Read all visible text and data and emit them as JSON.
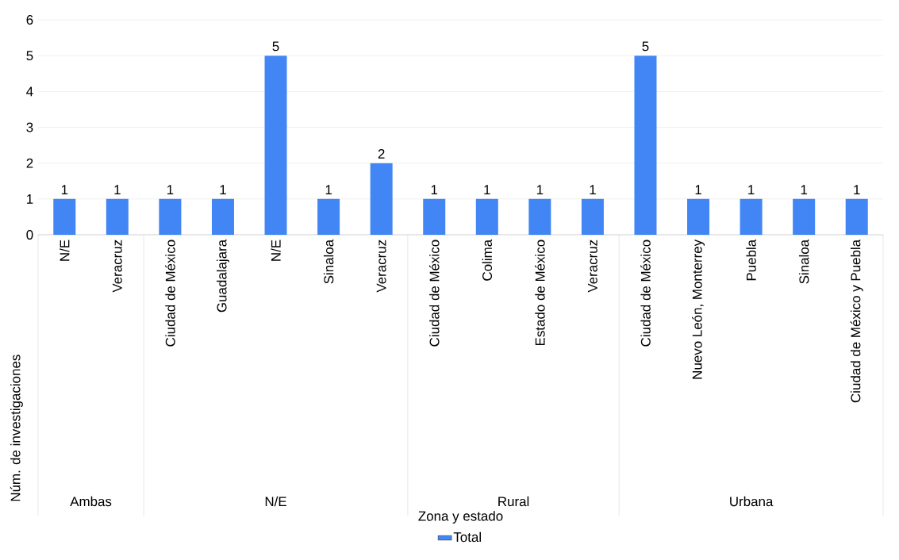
{
  "chart_data": {
    "type": "bar",
    "ylabel": "Núm. de investigaciones",
    "categories": [
      "N/E",
      "Veracruz",
      "Ciudad de México",
      "Guadalajara",
      "N/E",
      "Sinaloa",
      "Veracruz",
      "Ciudad de México",
      "Colima",
      "Estado de México",
      "Veracruz",
      "Ciudad de México",
      "Nuevo León, Monterrey",
      "Puebla",
      "Sinaloa",
      "Ciudad de México y Puebla"
    ],
    "series": [
      {
        "name": "Total",
        "color": "#4285f4",
        "values": [
          1,
          1,
          1,
          1,
          5,
          1,
          2,
          1,
          1,
          1,
          1,
          5,
          1,
          1,
          1,
          1
        ]
      }
    ],
    "annotations": [
      "Ambas",
      "N/E",
      "Rural",
      "Urbana",
      "Zona y estado"
    ],
    "ylim": [
      0,
      6
    ],
    "yticks": [
      0,
      1,
      2,
      3,
      4,
      5,
      6
    ],
    "grid": "y",
    "data_labels": true,
    "legend": "bottom"
  }
}
